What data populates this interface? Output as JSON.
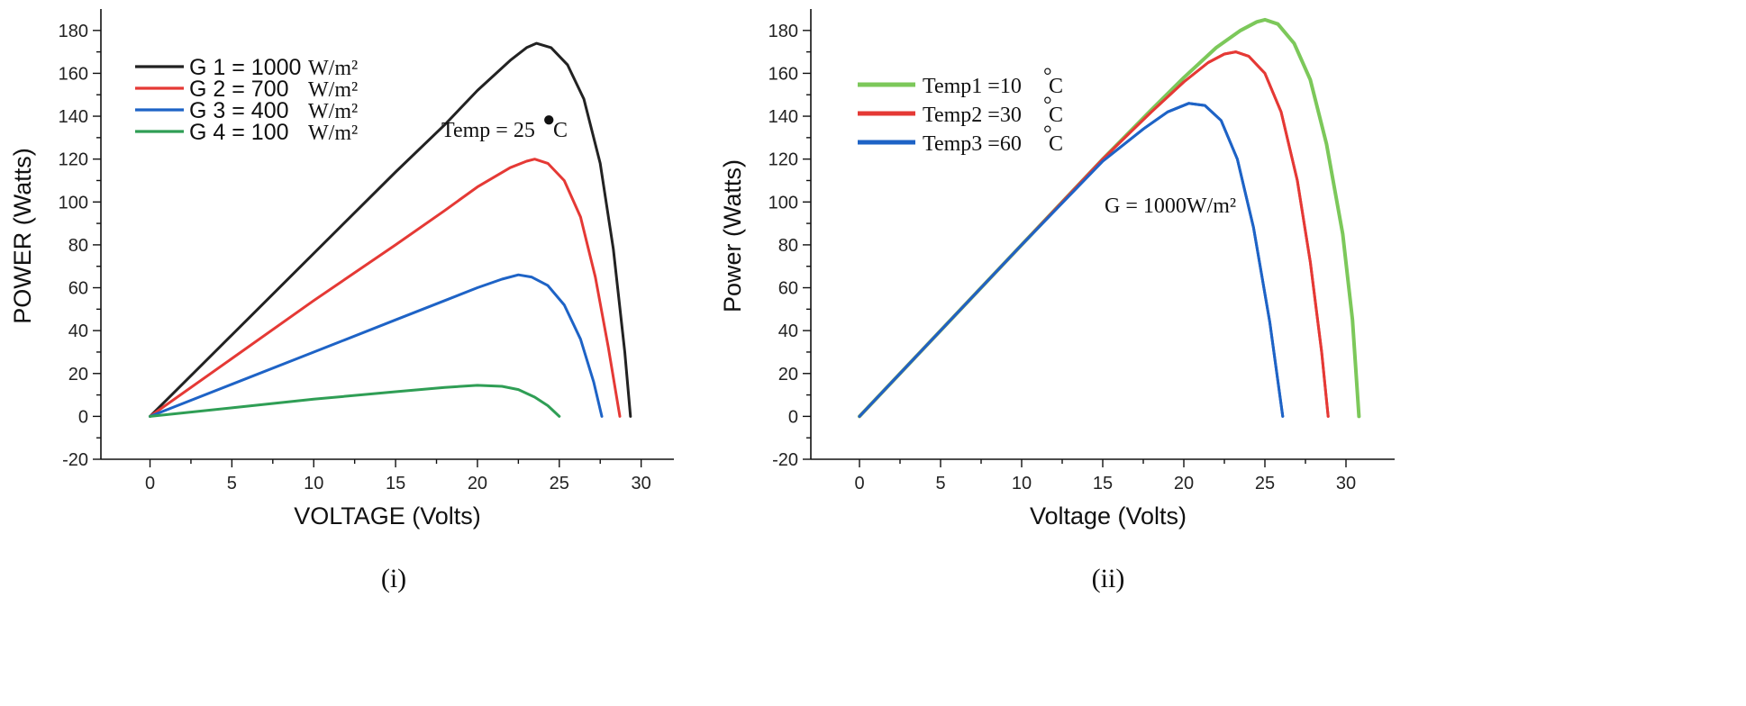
{
  "chart_data": [
    {
      "id": "chart-i",
      "type": "line",
      "caption": "(i)",
      "xlabel": "VOLTAGE (Volts)",
      "ylabel": "POWER (Watts)",
      "xlim": [
        -3,
        32
      ],
      "ylim": [
        -20,
        190
      ],
      "xticks": [
        0,
        5,
        10,
        15,
        20,
        25,
        30
      ],
      "yticks": [
        -20,
        0,
        20,
        40,
        60,
        80,
        100,
        120,
        140,
        160,
        180
      ],
      "annotation": {
        "text": "Temp = 25",
        "degree_mark": "●",
        "unit": "C"
      },
      "series": [
        {
          "name": "G 1 = 1000",
          "unit": "W/m²",
          "color": "#222222",
          "legend_label": "G 1 = 1000",
          "legend_unit": "W/m²",
          "x": [
            0,
            5,
            10,
            15,
            18,
            20,
            22,
            23,
            23.6,
            24.5,
            25.5,
            26.5,
            27.5,
            28.3,
            29.0,
            29.35
          ],
          "y": [
            0,
            38,
            76,
            114,
            136,
            152,
            166,
            172,
            174,
            172,
            164,
            148,
            118,
            78,
            30,
            0
          ]
        },
        {
          "name": "G 2 = 700",
          "unit": "W/m²",
          "color": "#e53935",
          "legend_label": "G 2 = 700",
          "legend_unit": "W/m²",
          "x": [
            0,
            5,
            10,
            15,
            18,
            20,
            22,
            23,
            23.5,
            24.3,
            25.3,
            26.3,
            27.2,
            28.0,
            28.7
          ],
          "y": [
            0,
            27,
            54,
            80,
            96,
            107,
            116,
            119,
            120,
            118,
            110,
            93,
            65,
            32,
            0
          ]
        },
        {
          "name": "G 3 = 400",
          "unit": "W/m²",
          "color": "#1e63c6",
          "legend_label": "G 3 = 400",
          "legend_unit": "W/m²",
          "x": [
            0,
            5,
            10,
            15,
            18,
            20,
            21.5,
            22.5,
            23.3,
            24.3,
            25.3,
            26.3,
            27.1,
            27.6
          ],
          "y": [
            0,
            15,
            30,
            45,
            54,
            60,
            64,
            66,
            65,
            61,
            52,
            36,
            16,
            0
          ]
        },
        {
          "name": "G 4 = 100",
          "unit": "W/m²",
          "color": "#2f9e55",
          "legend_label": "G 4 = 100",
          "legend_unit": "W/m²",
          "x": [
            0,
            5,
            10,
            15,
            18,
            20,
            21.5,
            22.5,
            23.5,
            24.3,
            25.0
          ],
          "y": [
            0,
            4,
            8,
            11.5,
            13.5,
            14.5,
            14,
            12.5,
            9,
            5,
            0
          ]
        }
      ]
    },
    {
      "id": "chart-ii",
      "type": "line",
      "caption": "(ii)",
      "xlabel": "Voltage (Volts)",
      "ylabel": "Power (Watts)",
      "xlim": [
        -3,
        33
      ],
      "ylim": [
        -20,
        190
      ],
      "xticks": [
        0,
        5,
        10,
        15,
        20,
        25,
        30
      ],
      "yticks": [
        -20,
        0,
        20,
        40,
        60,
        80,
        100,
        120,
        140,
        160,
        180
      ],
      "annotation": {
        "text": "G = 1000W/m²"
      },
      "series": [
        {
          "name": "Temp1 =10°C",
          "color": "#7cc85a",
          "legend_label": "Temp1 =10",
          "legend_unit": "C",
          "x": [
            0,
            5,
            10,
            15,
            18,
            20,
            22,
            23.5,
            24.5,
            25.0,
            25.8,
            26.8,
            27.8,
            28.8,
            29.8,
            30.4,
            30.8
          ],
          "y": [
            0,
            40,
            80,
            120,
            143,
            158,
            172,
            180,
            184,
            185,
            183,
            174,
            157,
            127,
            85,
            45,
            0
          ]
        },
        {
          "name": "Temp2 =30°C",
          "color": "#e53935",
          "legend_label": "Temp2 =30",
          "legend_unit": "C",
          "x": [
            0,
            5,
            10,
            15,
            18,
            20,
            21.5,
            22.5,
            23.2,
            24.0,
            25.0,
            26.0,
            27.0,
            27.8,
            28.5,
            28.9
          ],
          "y": [
            0,
            40,
            80,
            120,
            142,
            156,
            165,
            169,
            170,
            168,
            160,
            142,
            110,
            72,
            30,
            0
          ]
        },
        {
          "name": "Temp3 =60°C",
          "color": "#1e63c6",
          "legend_label": "Temp3 =60",
          "legend_unit": "C",
          "x": [
            0,
            5,
            10,
            15,
            17.5,
            19,
            20.3,
            21.3,
            22.3,
            23.3,
            24.3,
            25.3,
            26.1
          ],
          "y": [
            0,
            40,
            80,
            119,
            134,
            142,
            146,
            145,
            138,
            120,
            88,
            44,
            0
          ]
        }
      ]
    }
  ]
}
